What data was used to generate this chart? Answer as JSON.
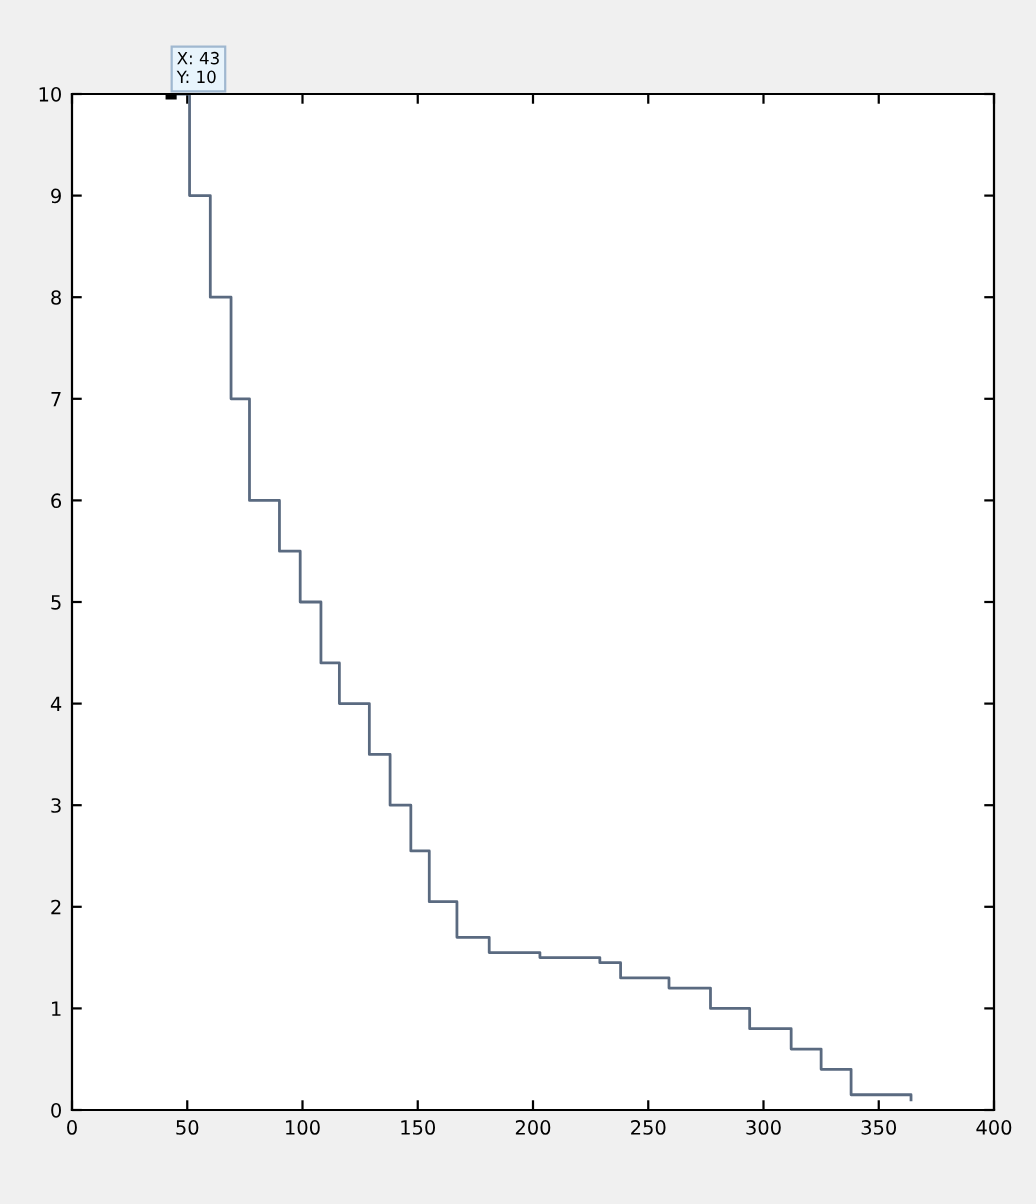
{
  "chart_data": {
    "type": "step",
    "xlim": [
      0,
      400
    ],
    "ylim": [
      0,
      10
    ],
    "xticks": [
      0,
      50,
      100,
      150,
      200,
      250,
      300,
      350,
      400
    ],
    "yticks": [
      0,
      1,
      2,
      3,
      4,
      5,
      6,
      7,
      8,
      9,
      10
    ],
    "grid": false,
    "line_style": "solid",
    "series": [
      {
        "color": "#5a6a80",
        "x": [
          43,
          51,
          60,
          69,
          77,
          90,
          99,
          108,
          116,
          129,
          138,
          147,
          155,
          167,
          181,
          203,
          229,
          238,
          259,
          277,
          294,
          312,
          325,
          338,
          364
        ],
        "values": [
          10,
          9,
          8,
          7,
          6,
          5.5,
          5,
          4.4,
          4,
          3.5,
          3,
          2.55,
          2.05,
          1.7,
          1.55,
          1.5,
          1.45,
          1.3,
          1.2,
          1.0,
          0.8,
          0.6,
          0.4,
          0.15,
          0.1
        ]
      }
    ],
    "annotations": [
      {
        "text": "X: 43\nY: 10",
        "x": 43,
        "y": 10
      }
    ]
  }
}
